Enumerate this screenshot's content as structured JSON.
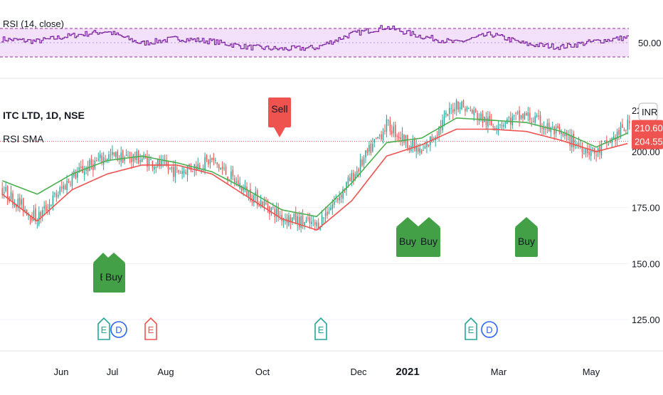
{
  "rsi_panel": {
    "label": "RSI (14, close)",
    "level_label": "50.00"
  },
  "main_panel": {
    "title": "ITC LTD, 1D, NSE",
    "indicator": "RSI SMA",
    "currency": "INR",
    "price_tags": [
      {
        "label": "210.60",
        "value": 210.6,
        "color": "#ef5350"
      },
      {
        "label": "204.55",
        "value": 204.55,
        "color": "#ef5350"
      }
    ],
    "y_ticks": [
      {
        "label": "200.00",
        "value": 200
      },
      {
        "label": "175.00",
        "value": 175
      },
      {
        "label": "150.00",
        "value": 150
      },
      {
        "label": "125.00",
        "value": 125
      }
    ],
    "top_tick_label": "22"
  },
  "x_axis": [
    {
      "label": "Jun",
      "bold": false
    },
    {
      "label": "Jul",
      "bold": false
    },
    {
      "label": "Aug",
      "bold": false
    },
    {
      "label": "Oct",
      "bold": false
    },
    {
      "label": "Dec",
      "bold": false
    },
    {
      "label": "2021",
      "bold": true
    },
    {
      "label": "Mar",
      "bold": false
    },
    {
      "label": "May",
      "bold": false
    }
  ],
  "signals": [
    {
      "label": "B",
      "type": "buy"
    },
    {
      "label": "Buy",
      "type": "buy"
    },
    {
      "label": "Sell",
      "type": "sell"
    },
    {
      "label": "Buy",
      "type": "buy"
    },
    {
      "label": "Buy",
      "type": "buy"
    },
    {
      "label": "Buy",
      "type": "buy"
    }
  ],
  "events": [
    {
      "label": "E",
      "kind": "earnings",
      "color": "#26a69a"
    },
    {
      "label": "D",
      "kind": "dividend",
      "color": "#2962ff"
    },
    {
      "label": "E",
      "kind": "earnings",
      "color": "#ef5350"
    },
    {
      "label": "E",
      "kind": "earnings",
      "color": "#26a69a"
    },
    {
      "label": "E",
      "kind": "earnings",
      "color": "#26a69a"
    },
    {
      "label": "D",
      "kind": "dividend",
      "color": "#2962ff"
    }
  ],
  "colors": {
    "up": "#26a69a",
    "down": "#ef5350",
    "fast_ma": "#4caf50",
    "slow_ma": "#ef5350",
    "rsi_line": "#7b1fa2",
    "rsi_band": "#f3e0fa",
    "buy": "#43a047",
    "sell": "#ef5350"
  },
  "chart_data": [
    {
      "type": "line",
      "title": "RSI (14, close)",
      "ylabel": "",
      "y_ticks": [
        50
      ],
      "band": [
        30,
        70
      ],
      "x": [
        0,
        20,
        40,
        60,
        80,
        100,
        120,
        140,
        160,
        180,
        200,
        220,
        240,
        260,
        280,
        300,
        320,
        340,
        360
      ],
      "series": [
        {
          "name": "RSI (14, close)",
          "values": [
            55,
            52,
            60,
            66,
            49,
            56,
            52,
            44,
            41,
            43,
            62,
            72,
            59,
            50,
            62,
            48,
            44,
            52,
            58
          ]
        }
      ]
    },
    {
      "type": "line",
      "title": "ITC LTD, 1D, NSE",
      "ylabel": "INR",
      "ylim": [
        112,
        227
      ],
      "x": [
        0,
        20,
        40,
        60,
        80,
        100,
        120,
        140,
        160,
        180,
        200,
        220,
        240,
        260,
        280,
        300,
        320,
        340,
        360
      ],
      "series": [
        {
          "name": "Close",
          "values": [
            183,
            170,
            189,
            198,
            197,
            191,
            196,
            182,
            171,
            167,
            188,
            212,
            199,
            222,
            212,
            216,
            207,
            199,
            213
          ]
        },
        {
          "name": "Fast MA",
          "values": [
            187,
            181,
            190,
            196,
            198,
            195,
            191,
            183,
            174,
            171,
            186,
            204,
            206,
            215,
            214,
            213,
            209,
            202,
            209
          ]
        },
        {
          "name": "Slow MA",
          "values": [
            181,
            169,
            183,
            190,
            194,
            194,
            190,
            180,
            170,
            165,
            178,
            198,
            203,
            210,
            210,
            209,
            205,
            200,
            204
          ]
        }
      ]
    }
  ]
}
